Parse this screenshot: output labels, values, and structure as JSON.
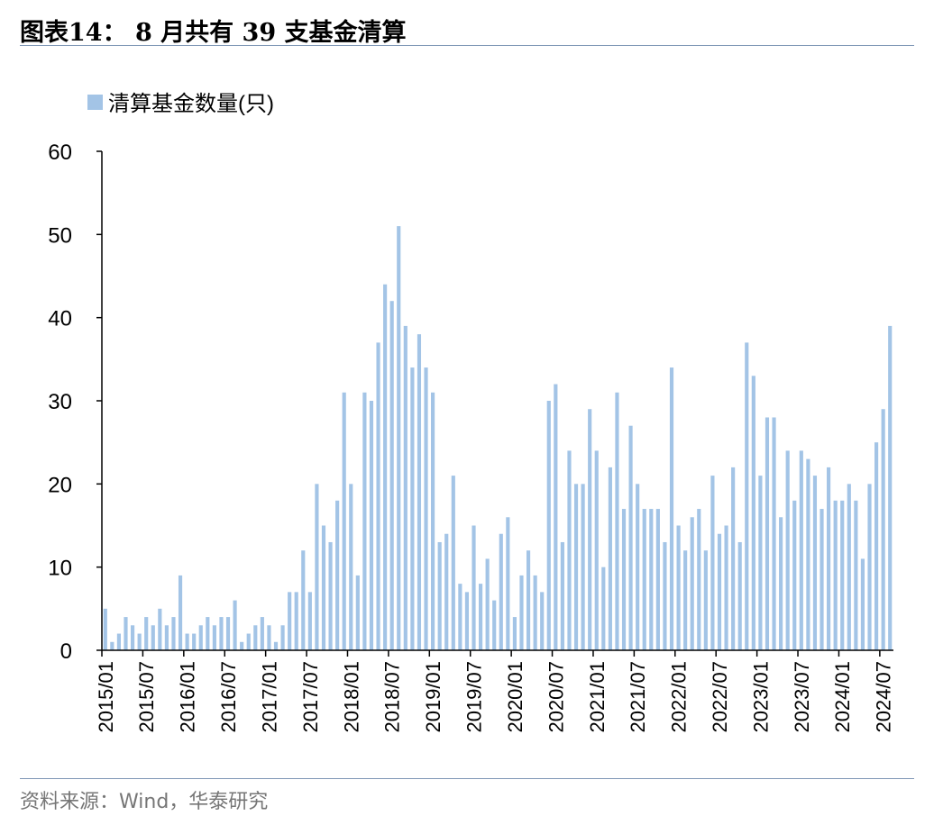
{
  "header": {
    "title": "图表14：  8 月共有 39 支基金清算"
  },
  "footer": {
    "source": "资料来源：Wind，华泰研究"
  },
  "colors": {
    "bar": "#a3c4e6",
    "axis": "#000000",
    "rule": "#7f97b6"
  },
  "chart_data": {
    "type": "bar",
    "title": "8 月共有 39 支基金清算",
    "xlabel": "",
    "ylabel": "",
    "ylim": [
      0,
      60
    ],
    "yticks": [
      0,
      10,
      20,
      30,
      40,
      50,
      60
    ],
    "grid": false,
    "legend_position": "top-left",
    "x_tick_labels": [
      "2015/01",
      "2015/07",
      "2016/01",
      "2016/07",
      "2017/01",
      "2017/07",
      "2018/01",
      "2018/07",
      "2019/01",
      "2019/07",
      "2020/01",
      "2020/07",
      "2021/01",
      "2021/07",
      "2022/01",
      "2022/07",
      "2023/01",
      "2023/07",
      "2024/01",
      "2024/07"
    ],
    "series": [
      {
        "name": "清算基金数量(只)",
        "start": "2015/01",
        "end": "2024/08",
        "values": [
          5,
          1,
          2,
          4,
          3,
          2,
          4,
          3,
          5,
          3,
          4,
          9,
          2,
          2,
          3,
          4,
          3,
          4,
          4,
          6,
          1,
          2,
          3,
          4,
          3,
          1,
          3,
          7,
          7,
          12,
          7,
          20,
          15,
          13,
          18,
          31,
          20,
          9,
          31,
          30,
          37,
          44,
          42,
          51,
          39,
          34,
          38,
          34,
          31,
          13,
          14,
          21,
          8,
          7,
          15,
          8,
          11,
          6,
          14,
          16,
          4,
          9,
          12,
          9,
          7,
          30,
          32,
          13,
          24,
          20,
          20,
          29,
          24,
          10,
          22,
          31,
          17,
          27,
          20,
          17,
          17,
          17,
          13,
          34,
          15,
          12,
          16,
          17,
          12,
          21,
          14,
          15,
          22,
          13,
          37,
          33,
          21,
          28,
          28,
          16,
          24,
          18,
          24,
          23,
          21,
          17,
          22,
          18,
          18,
          20,
          18,
          11,
          20,
          25,
          29,
          39
        ]
      }
    ]
  }
}
